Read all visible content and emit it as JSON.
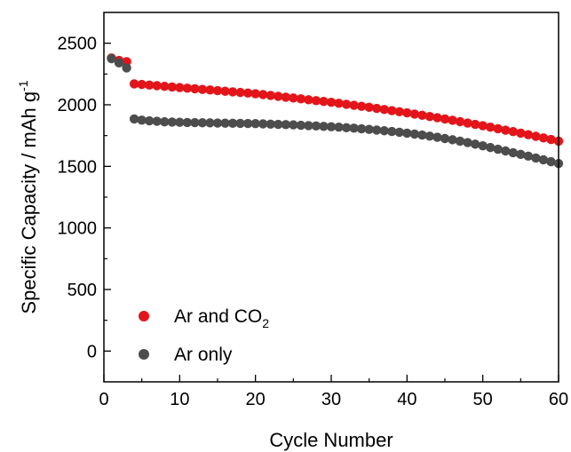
{
  "chart_data": {
    "type": "scatter",
    "xlabel": "Cycle Number",
    "ylabel": "Specific Capacity / mAh g",
    "ylabel_sup": "-1",
    "xlim": [
      0,
      60
    ],
    "ylim": [
      -250,
      2750
    ],
    "x_ticks": [
      0,
      10,
      20,
      30,
      40,
      50,
      60
    ],
    "y_ticks": [
      0,
      500,
      1000,
      1500,
      2000,
      2500
    ],
    "grid": false,
    "legend_position": "bottom-left",
    "series": [
      {
        "name": "Ar and CO",
        "name_sub": "2",
        "color": "#e3151a",
        "x": [
          1,
          2,
          3,
          4,
          5,
          6,
          7,
          8,
          9,
          10,
          11,
          12,
          13,
          14,
          15,
          16,
          17,
          18,
          19,
          20,
          21,
          22,
          23,
          24,
          25,
          26,
          27,
          28,
          29,
          30,
          31,
          32,
          33,
          34,
          35,
          36,
          37,
          38,
          39,
          40,
          41,
          42,
          43,
          44,
          45,
          46,
          47,
          48,
          49,
          50,
          51,
          52,
          53,
          54,
          55,
          56,
          57,
          58,
          59,
          60
        ],
        "y": [
          2380,
          2360,
          2350,
          2170,
          2165,
          2160,
          2155,
          2150,
          2145,
          2140,
          2135,
          2130,
          2125,
          2120,
          2115,
          2110,
          2105,
          2100,
          2095,
          2090,
          2083,
          2076,
          2069,
          2062,
          2055,
          2048,
          2041,
          2034,
          2027,
          2020,
          2012,
          2004,
          1996,
          1988,
          1980,
          1971,
          1962,
          1953,
          1944,
          1935,
          1925,
          1915,
          1905,
          1895,
          1885,
          1874,
          1863,
          1852,
          1841,
          1830,
          1818,
          1806,
          1794,
          1782,
          1770,
          1757,
          1744,
          1731,
          1718,
          1705
        ]
      },
      {
        "name": "Ar only",
        "color": "#4d4d4d",
        "x": [
          1,
          2,
          3,
          4,
          5,
          6,
          7,
          8,
          9,
          10,
          11,
          12,
          13,
          14,
          15,
          16,
          17,
          18,
          19,
          20,
          21,
          22,
          23,
          24,
          25,
          26,
          27,
          28,
          29,
          30,
          31,
          32,
          33,
          34,
          35,
          36,
          37,
          38,
          39,
          40,
          41,
          42,
          43,
          44,
          45,
          46,
          47,
          48,
          49,
          50,
          51,
          52,
          53,
          54,
          55,
          56,
          57,
          58,
          59,
          60
        ],
        "y": [
          2375,
          2340,
          2300,
          1885,
          1875,
          1870,
          1866,
          1862,
          1860,
          1858,
          1856,
          1855,
          1854,
          1853,
          1852,
          1851,
          1850,
          1849,
          1848,
          1847,
          1845,
          1843,
          1841,
          1839,
          1837,
          1834,
          1831,
          1828,
          1825,
          1822,
          1818,
          1814,
          1810,
          1805,
          1800,
          1795,
          1789,
          1783,
          1777,
          1770,
          1762,
          1754,
          1745,
          1736,
          1726,
          1716,
          1705,
          1693,
          1680,
          1667,
          1653,
          1639,
          1625,
          1611,
          1597,
          1583,
          1568,
          1553,
          1538,
          1523
        ]
      }
    ]
  }
}
